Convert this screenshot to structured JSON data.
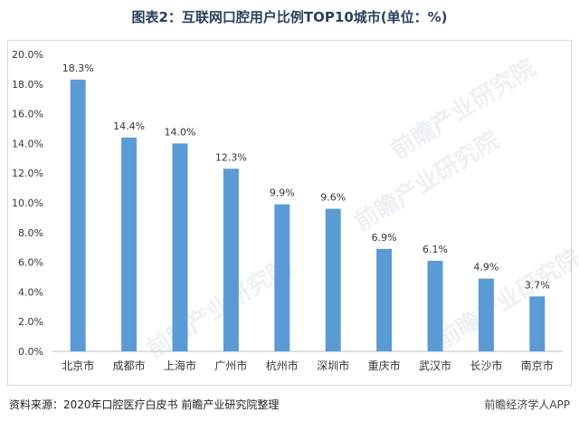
{
  "title": "图表2：互联网口腔用户比例TOP10城市(单位：%)",
  "footer": {
    "source": "资料来源：2020年口腔医疗白皮书 前瞻产业研究院整理",
    "watermark_text": "前瞻经济学人APP"
  },
  "background_watermark": "前瞻产业研究院",
  "colors": {
    "bar": "#5b9bd5",
    "grid": "#d9d9d9",
    "axis": "#bfbfbf"
  },
  "chart_data": {
    "type": "bar",
    "categories": [
      "北京市",
      "成都市",
      "上海市",
      "广州市",
      "杭州市",
      "深圳市",
      "重庆市",
      "武汉市",
      "长沙市",
      "南京市"
    ],
    "values": [
      18.3,
      14.4,
      14.0,
      12.3,
      9.9,
      9.6,
      6.9,
      6.1,
      4.9,
      3.7
    ],
    "data_labels": [
      "18.3%",
      "14.4%",
      "14.0%",
      "12.3%",
      "9.9%",
      "9.6%",
      "6.9%",
      "6.1%",
      "4.9%",
      "3.7%"
    ],
    "ylim": [
      0,
      20
    ],
    "ytick_step": 2,
    "ytick_labels": [
      "0.0%",
      "2.0%",
      "4.0%",
      "6.0%",
      "8.0%",
      "10.0%",
      "12.0%",
      "14.0%",
      "16.0%",
      "18.0%",
      "20.0%"
    ],
    "grid": false
  }
}
